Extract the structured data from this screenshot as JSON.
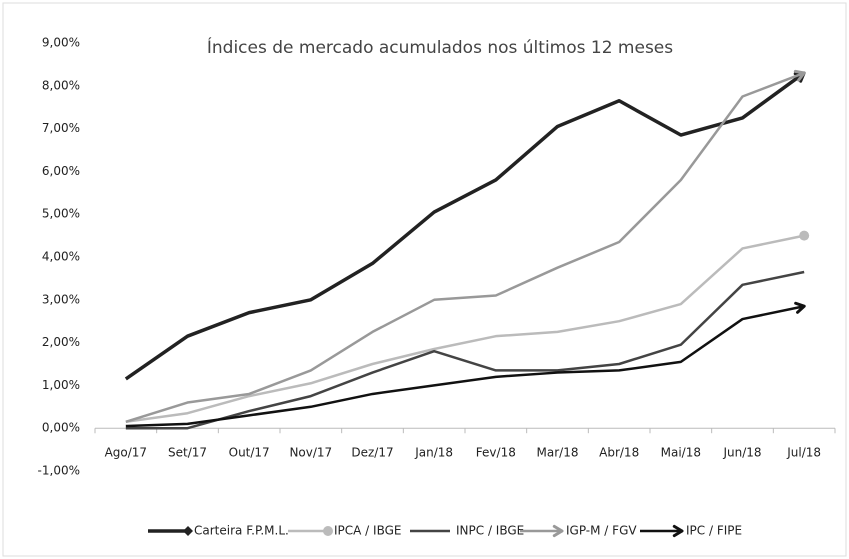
{
  "chart_data": {
    "type": "line",
    "title": "Índices de mercado acumulados nos últimos 12 meses",
    "categories": [
      "Ago/17",
      "Set/17",
      "Out/17",
      "Nov/17",
      "Dez/17",
      "Jan/18",
      "Fev/18",
      "Mar/18",
      "Abr/18",
      "Mai/18",
      "Jun/18",
      "Jul/18"
    ],
    "series": [
      {
        "name": "Carteira F.P.M.L.",
        "color": "#222222",
        "marker": "diamond",
        "values": [
          1.15,
          2.15,
          2.7,
          3.0,
          3.85,
          5.05,
          5.8,
          7.05,
          7.65,
          6.85,
          7.25,
          8.3
        ]
      },
      {
        "name": "IPCA / IBGE",
        "color": "#bbbbbb",
        "marker": "circle",
        "values": [
          0.15,
          0.35,
          0.75,
          1.05,
          1.5,
          1.85,
          2.15,
          2.25,
          2.5,
          2.9,
          4.2,
          4.5
        ]
      },
      {
        "name": "INPC / IBGE",
        "color": "#444444",
        "marker": "none",
        "values": [
          0.0,
          0.0,
          0.4,
          0.75,
          1.3,
          1.8,
          1.35,
          1.35,
          1.5,
          1.95,
          3.35,
          3.65
        ]
      },
      {
        "name": "IGP-M / FGV",
        "color": "#999999",
        "marker": "arrow",
        "values": [
          0.15,
          0.6,
          0.8,
          1.35,
          2.25,
          3.0,
          3.1,
          3.75,
          4.35,
          5.8,
          7.75,
          8.3
        ]
      },
      {
        "name": "IPC / FIPE",
        "color": "#111111",
        "marker": "arrow",
        "values": [
          0.05,
          0.1,
          0.3,
          0.5,
          0.8,
          1.0,
          1.2,
          1.3,
          1.35,
          1.55,
          2.55,
          2.85
        ]
      }
    ],
    "ylim": [
      -1,
      9
    ],
    "yticks": [
      {
        "value": -1,
        "label": "-1,00%"
      },
      {
        "value": 0,
        "label": "0,00%"
      },
      {
        "value": 1,
        "label": "1,00%"
      },
      {
        "value": 2,
        "label": "2,00%"
      },
      {
        "value": 3,
        "label": "3,00%"
      },
      {
        "value": 4,
        "label": "4,00%"
      },
      {
        "value": 5,
        "label": "5,00%"
      },
      {
        "value": 6,
        "label": "6,00%"
      },
      {
        "value": 7,
        "label": "7,00%"
      },
      {
        "value": 8,
        "label": "8,00%"
      },
      {
        "value": 9,
        "label": "9,00%"
      }
    ],
    "grid": false,
    "legend": "bottom"
  }
}
